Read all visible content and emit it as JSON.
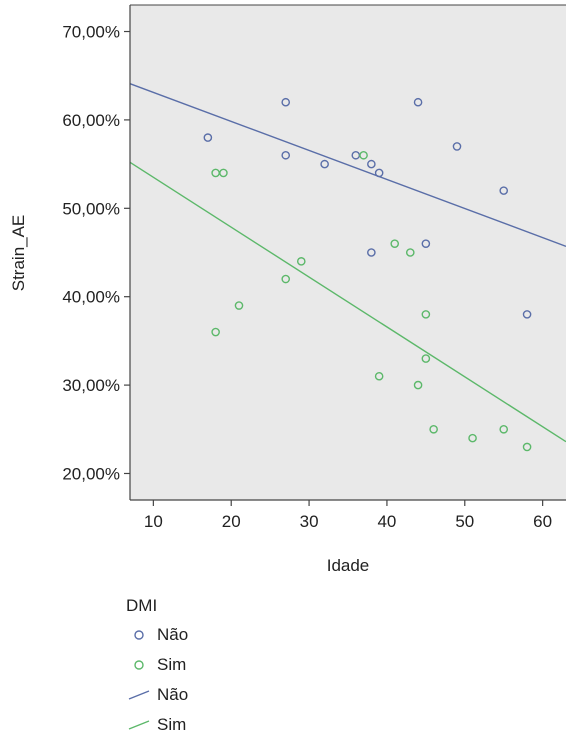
{
  "chart_data": {
    "type": "scatter",
    "title": "",
    "xlabel": "Idade",
    "ylabel": "Strain_AE",
    "xlim": [
      7,
      63
    ],
    "ylim": [
      17,
      73
    ],
    "x_ticks": [
      10,
      20,
      30,
      40,
      50,
      60
    ],
    "y_ticks": [
      20,
      30,
      40,
      50,
      60,
      70
    ],
    "y_tick_labels": [
      "20,00%",
      "30,00%",
      "40,00%",
      "50,00%",
      "60,00%",
      "70,00%"
    ],
    "grid": false,
    "background": "#e9e9e9",
    "legend": {
      "title": "DMI",
      "position": "bottom-left",
      "entries": [
        {
          "label": "Não",
          "kind": "marker",
          "color": "#5a6ea8"
        },
        {
          "label": "Sim",
          "kind": "marker",
          "color": "#5cb86a"
        },
        {
          "label": "Não",
          "kind": "line",
          "color": "#5a6ea8"
        },
        {
          "label": "Sim",
          "kind": "line",
          "color": "#5cb86a"
        }
      ]
    },
    "series": [
      {
        "name": "Não",
        "color": "#5a6ea8",
        "points": [
          [
            17,
            58
          ],
          [
            27,
            62
          ],
          [
            27,
            56
          ],
          [
            32,
            55
          ],
          [
            36,
            56
          ],
          [
            38,
            55
          ],
          [
            39,
            54
          ],
          [
            38,
            45
          ],
          [
            44,
            62
          ],
          [
            45,
            46
          ],
          [
            49,
            57
          ],
          [
            55,
            52
          ],
          [
            58,
            38
          ]
        ],
        "fit_line": [
          [
            7,
            64.1
          ],
          [
            63,
            45.7
          ]
        ]
      },
      {
        "name": "Sim",
        "color": "#5cb86a",
        "points": [
          [
            18,
            54
          ],
          [
            19,
            54
          ],
          [
            37,
            56
          ],
          [
            18,
            36
          ],
          [
            21,
            39
          ],
          [
            27,
            42
          ],
          [
            29,
            44
          ],
          [
            39,
            31
          ],
          [
            41,
            46
          ],
          [
            43,
            45
          ],
          [
            44,
            30
          ],
          [
            45,
            38
          ],
          [
            45,
            33
          ],
          [
            46,
            25
          ],
          [
            51,
            24
          ],
          [
            55,
            25
          ],
          [
            58,
            23
          ]
        ],
        "fit_line": [
          [
            7,
            55.2
          ],
          [
            63,
            23.6
          ]
        ]
      }
    ]
  }
}
